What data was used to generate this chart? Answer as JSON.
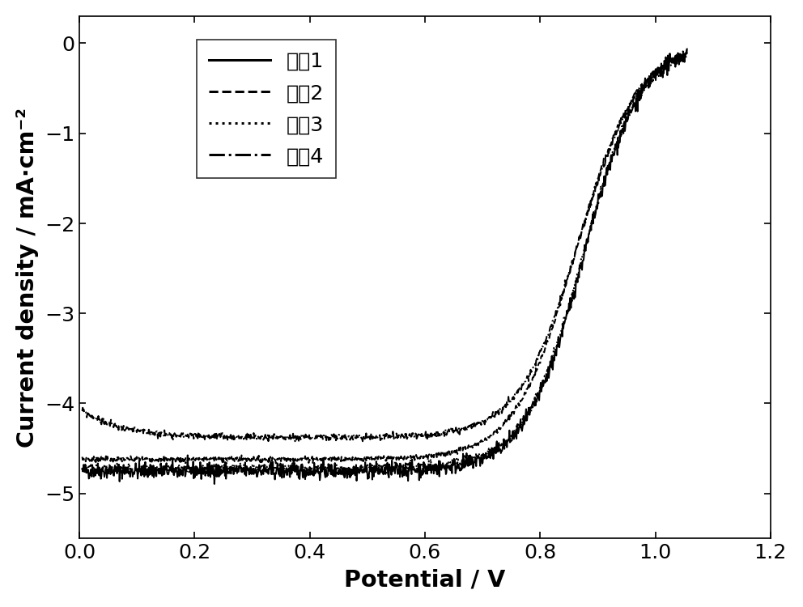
{
  "xlabel": "Potential / V",
  "ylabel": "Current density / mA·cm⁻²",
  "xlim": [
    0.0,
    1.2
  ],
  "ylim": [
    -5.5,
    0.3
  ],
  "xticks": [
    0.0,
    0.2,
    0.4,
    0.6,
    0.8,
    1.0,
    1.2
  ],
  "yticks": [
    0,
    -1,
    -2,
    -3,
    -4,
    -5
  ],
  "legend_labels": [
    "实例1",
    "实例2",
    "实例3",
    "实例4"
  ],
  "linestyles": [
    "-",
    "--",
    ":",
    "-."
  ],
  "linewidths": [
    1.2,
    1.2,
    1.2,
    1.2
  ],
  "colors": [
    "#000000",
    "#000000",
    "#000000",
    "#000000"
  ],
  "background_color": "#ffffff",
  "font_size": 17,
  "legend_fontsize": 15,
  "tick_fontsize": 15,
  "noise_scales": [
    0.045,
    0.015,
    0.025,
    0.018
  ],
  "j_lims": [
    -4.75,
    -4.62,
    -4.72,
    -4.38
  ],
  "V_halfs": [
    0.875,
    0.862,
    0.874,
    0.868
  ],
  "k_vals": [
    20,
    19,
    20,
    19
  ],
  "low_v_offsets": [
    0.0,
    0.0,
    0.0,
    0.32
  ]
}
